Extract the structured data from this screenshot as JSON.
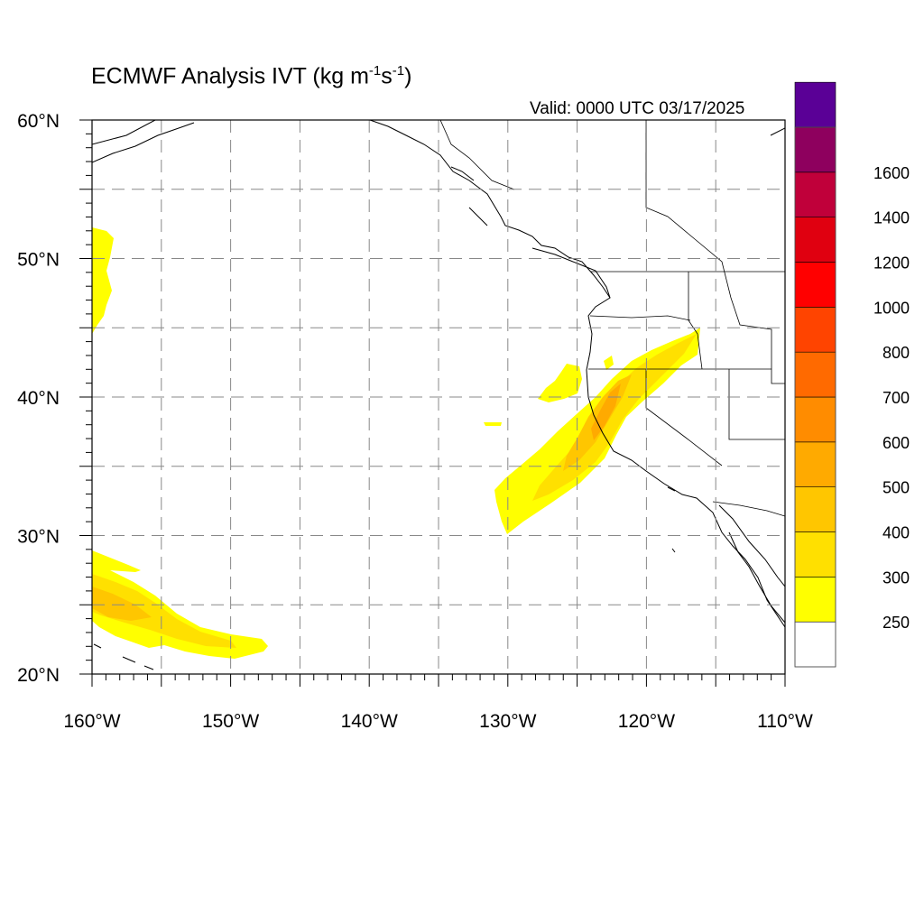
{
  "header": {
    "title_prefix": "ECMWF Analysis IVT (kg m",
    "title_exp1": "-1",
    "title_mid": "s",
    "title_exp2": "-1",
    "title_suffix": ")",
    "valid": "Valid: 0000 UTC 03/17/2025"
  },
  "map": {
    "lat_range": [
      20,
      60
    ],
    "lon_range": [
      -160,
      -110
    ],
    "lat_labels": [
      "60°N",
      "50°N",
      "40°N",
      "30°N",
      "20°N"
    ],
    "lon_labels": [
      "160°W",
      "150°W",
      "140°W",
      "130°W",
      "120°W",
      "110°W"
    ]
  },
  "colorbar": {
    "labels": [
      "250",
      "300",
      "400",
      "500",
      "600",
      "700",
      "800",
      "1000",
      "1200",
      "1400",
      "1600"
    ],
    "colors": [
      "#ffffff",
      "#ffff00",
      "#ffe000",
      "#ffc600",
      "#ffaa00",
      "#ff8c00",
      "#ff6a00",
      "#ff4400",
      "#ff0000",
      "#e00010",
      "#c0003a",
      "#8e005e",
      "#5a0096"
    ]
  },
  "colors": {
    "ivt_250": "#ffff00",
    "ivt_300": "#ffe000",
    "ivt_400": "#ffc600",
    "ivt_500": "#ffaa00",
    "coast": "#000000",
    "grid": "#888888"
  }
}
